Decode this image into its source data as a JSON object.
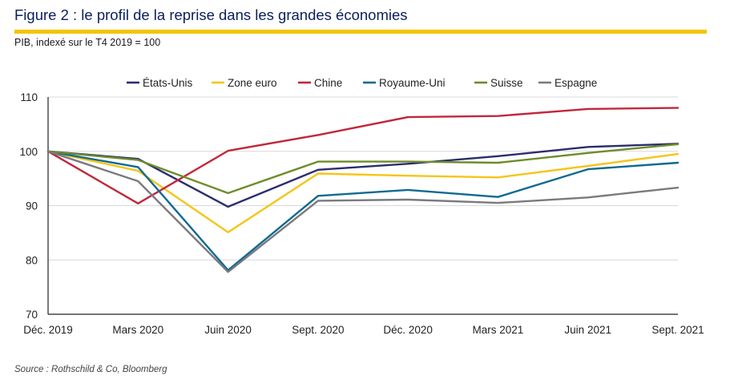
{
  "header": {
    "title": "Figure 2 : le profil de la reprise dans les grandes économies",
    "subtitle": "PIB, indexé sur le T4 2019 = 100"
  },
  "footer": {
    "source": "Source : Rothschild & Co, Bloomberg"
  },
  "colors": {
    "accent_rule": "#f2c500",
    "title": "#0b1f5c"
  },
  "chart_data": {
    "type": "line",
    "title": "Figure 2 : le profil de la reprise dans les grandes économies",
    "ylabel": "PIB, indexé sur le T4 2019 = 100",
    "xlabel": "",
    "categories": [
      "Déc. 2019",
      "Mars 2020",
      "Juin 2020",
      "Sept. 2020",
      "Déc. 2020",
      "Mars 2021",
      "Juin 2021",
      "Sept. 2021"
    ],
    "ylim": [
      70,
      110
    ],
    "yticks": [
      "70",
      "80",
      "90",
      "100",
      "110"
    ],
    "grid": true,
    "legend_position": "top",
    "series": [
      {
        "name": "États-Unis",
        "color": "#2b2d6e",
        "values": [
          100,
          98.6,
          89.8,
          96.6,
          97.7,
          99.1,
          100.8,
          101.4
        ]
      },
      {
        "name": "Zone euro",
        "color": "#f5c518",
        "values": [
          100,
          96.4,
          85.1,
          95.9,
          95.5,
          95.2,
          97.3,
          99.5
        ]
      },
      {
        "name": "Chine",
        "color": "#c0283b",
        "values": [
          100,
          90.4,
          100.1,
          103.0,
          106.3,
          106.5,
          107.8,
          108.0
        ]
      },
      {
        "name": "Royaume-Uni",
        "color": "#0f6a92",
        "values": [
          100,
          97.1,
          78.1,
          91.8,
          92.9,
          91.6,
          96.7,
          97.9
        ]
      },
      {
        "name": "Suisse",
        "color": "#6e8c2a",
        "values": [
          100,
          98.4,
          92.3,
          98.1,
          98.1,
          97.9,
          99.7,
          101.3
        ]
      },
      {
        "name": "Espagne",
        "color": "#7a7a7f",
        "values": [
          100,
          94.5,
          77.8,
          90.9,
          91.1,
          90.5,
          91.5,
          93.3
        ]
      }
    ]
  }
}
